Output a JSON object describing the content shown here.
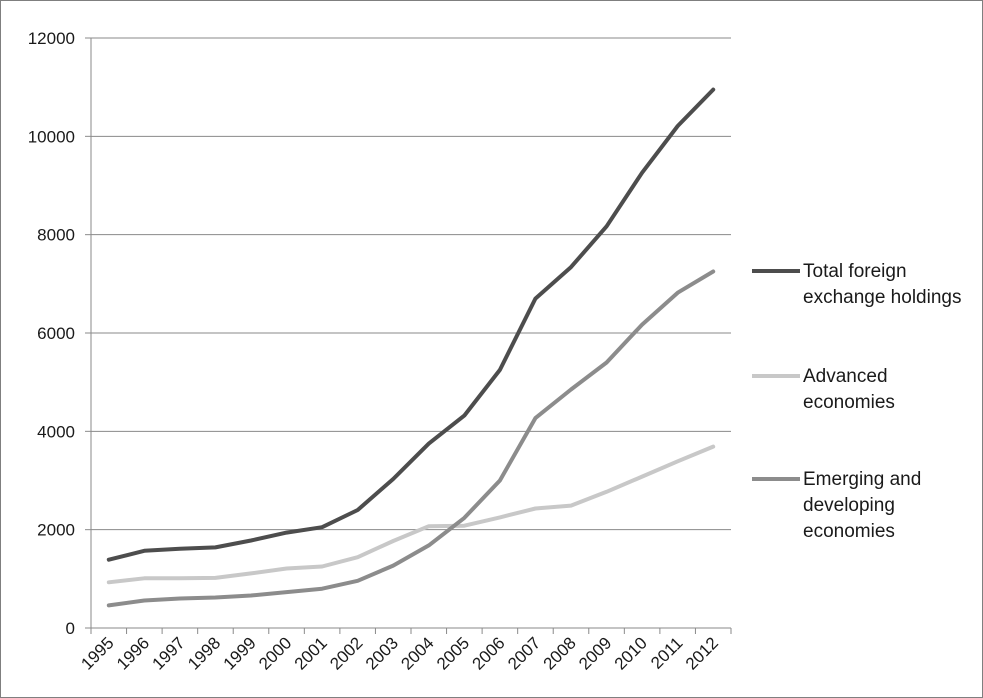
{
  "chart_data": {
    "type": "line",
    "title": "",
    "xlabel": "",
    "ylabel": "",
    "categories": [
      "1995",
      "1996",
      "1997",
      "1998",
      "1999",
      "2000",
      "2001",
      "2002",
      "2003",
      "2004",
      "2005",
      "2006",
      "2007",
      "2008",
      "2009",
      "2010",
      "2011",
      "2012"
    ],
    "ylim": [
      0,
      12000
    ],
    "yticks": [
      "0",
      "2000",
      "4000",
      "6000",
      "8000",
      "10000",
      "12000"
    ],
    "grid": true,
    "legend_position": "right",
    "series": [
      {
        "name": "Total foreign exchange holdings",
        "legend_lines": [
          "Total foreign",
          "exchange holdings"
        ],
        "color": "#4d4d4d",
        "values": [
          1390,
          1570,
          1610,
          1640,
          1780,
          1940,
          2050,
          2400,
          3030,
          3750,
          4320,
          5250,
          6700,
          7340,
          8170,
          9260,
          10210,
          10950
        ]
      },
      {
        "name": "Advanced economies",
        "legend_lines": [
          "Advanced",
          "economies"
        ],
        "color": "#c8c8c8",
        "values": [
          930,
          1010,
          1010,
          1020,
          1110,
          1210,
          1250,
          1440,
          1770,
          2070,
          2080,
          2250,
          2430,
          2490,
          2770,
          3080,
          3390,
          3690
        ]
      },
      {
        "name": "Emerging and developing economies",
        "legend_lines": [
          "Emerging and",
          "developing",
          "economies"
        ],
        "color": "#8c8c8c",
        "values": [
          460,
          560,
          600,
          620,
          660,
          730,
          800,
          960,
          1270,
          1680,
          2240,
          3000,
          4270,
          4850,
          5400,
          6170,
          6820,
          7250
        ]
      }
    ]
  }
}
